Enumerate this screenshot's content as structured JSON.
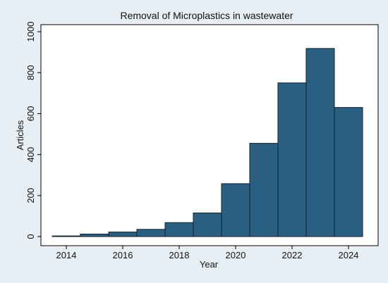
{
  "chart_data": {
    "type": "bar",
    "title": "Removal of Microplastics in wastewater",
    "xlabel": "Year",
    "ylabel": "Articles",
    "x_ticks": [
      "2014",
      "2016",
      "2018",
      "2020",
      "2022",
      "2024"
    ],
    "y_ticks": [
      "0",
      "200",
      "400",
      "600",
      "800",
      "1000"
    ],
    "xlim": [
      2013.3,
      2024.8
    ],
    "ylim": [
      0,
      1000
    ],
    "bins": [
      {
        "start": 2014,
        "end": 2015,
        "value": 3
      },
      {
        "start": 2015,
        "end": 2016,
        "value": 12
      },
      {
        "start": 2016,
        "end": 2017,
        "value": 22
      },
      {
        "start": 2017,
        "end": 2018,
        "value": 35
      },
      {
        "start": 2018,
        "end": 2019,
        "value": 68
      },
      {
        "start": 2019,
        "end": 2020,
        "value": 115
      },
      {
        "start": 2020,
        "end": 2021,
        "value": 258
      },
      {
        "start": 2021,
        "end": 2022,
        "value": 455
      },
      {
        "start": 2022,
        "end": 2023,
        "value": 750
      },
      {
        "start": 2023,
        "end": 2024,
        "value": 918
      },
      {
        "start": 2024,
        "end": 2025,
        "value": 630
      }
    ],
    "grid": false,
    "legend": "none",
    "colors": {
      "bar_fill": "#2b5f82",
      "bar_stroke": "#0f1f2c",
      "plot_background": "#ffffff",
      "outer_background": "#e7eef4",
      "border": "#000000"
    }
  }
}
